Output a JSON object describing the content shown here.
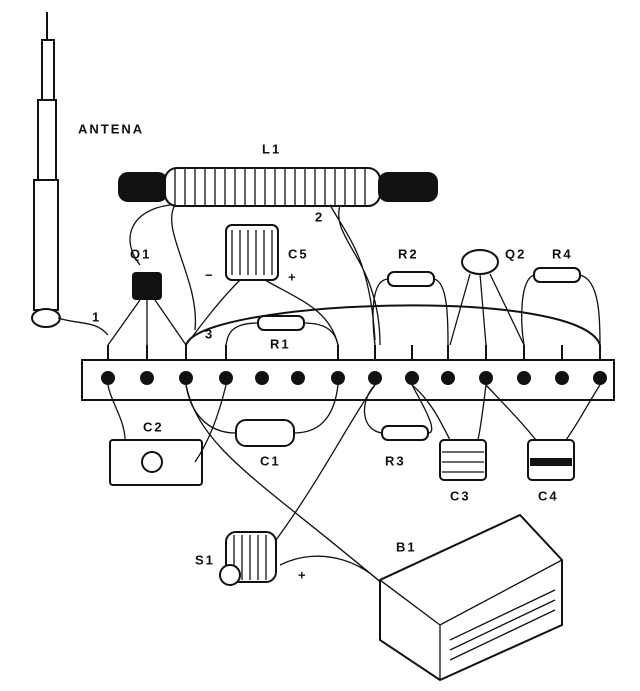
{
  "nodes": [
    {
      "label": "ANTENA"
    },
    {
      "label": "L1"
    },
    {
      "label": "Q1"
    },
    {
      "label": "C5"
    },
    {
      "label": "−"
    },
    {
      "label": "+"
    },
    {
      "label": "R2"
    },
    {
      "label": "Q2"
    },
    {
      "label": "R4"
    },
    {
      "label": "1"
    },
    {
      "label": "2"
    },
    {
      "label": "3"
    },
    {
      "label": "R1"
    },
    {
      "label": "C2"
    },
    {
      "label": "C1"
    },
    {
      "label": "R3"
    },
    {
      "label": "C3"
    },
    {
      "label": "C4"
    },
    {
      "label": "S1"
    },
    {
      "label": "B1"
    },
    {
      "label": "+"
    }
  ]
}
